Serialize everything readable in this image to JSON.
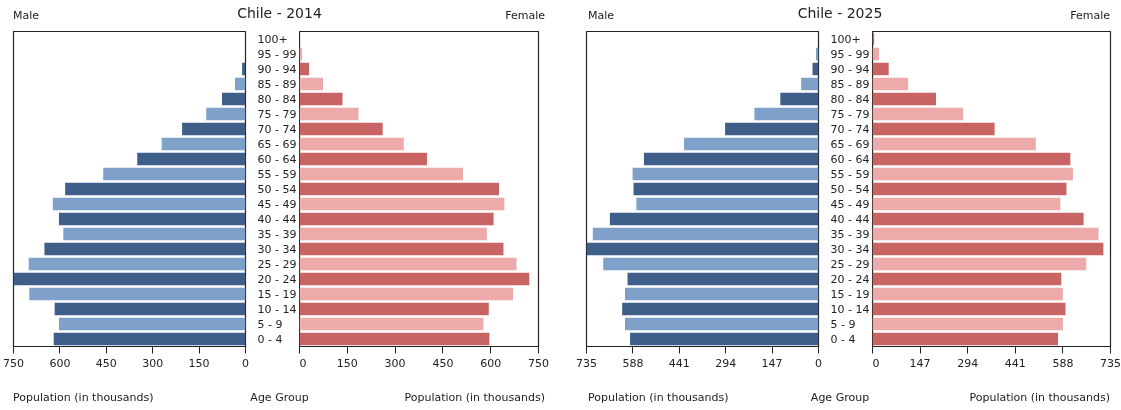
{
  "chart_data": [
    {
      "type": "bar",
      "orientation": "horizontal",
      "title": "Chile - 2014",
      "annotations": [
        "Male"
      ],
      "xlabel": "Population (in thousands)",
      "ylabel": "Age Group",
      "categories": [
        "100+",
        "95 - 99",
        "90 - 94",
        "85 - 89",
        "80 - 84",
        "75 - 79",
        "70 - 74",
        "65 - 69",
        "60 - 64",
        "55 - 59",
        "50 - 54",
        "45 - 49",
        "40 - 44",
        "35 - 39",
        "30 - 34",
        "25 - 29",
        "20 - 24",
        "15 - 19",
        "10 - 14",
        "5 - 9",
        "0 - 4"
      ],
      "values": [
        null,
        null,
        11,
        34,
        76,
        127,
        205,
        271,
        350,
        460,
        583,
        623,
        603,
        589,
        650,
        701,
        750,
        699,
        617,
        603,
        620
      ],
      "colors": [
        "#3f5f8a",
        "#7fa1c9",
        "#3f5f8a",
        "#7fa1c9",
        "#3f5f8a",
        "#7fa1c9",
        "#3f5f8a",
        "#7fa1c9",
        "#3f5f8a",
        "#7fa1c9",
        "#3f5f8a",
        "#7fa1c9",
        "#3f5f8a",
        "#7fa1c9",
        "#3f5f8a",
        "#7fa1c9",
        "#3f5f8a",
        "#7fa1c9",
        "#3f5f8a",
        "#7fa1c9",
        "#3f5f8a"
      ],
      "xlim": [
        750,
        0
      ],
      "xticks": [
        750,
        600,
        450,
        300,
        150,
        0
      ]
    },
    {
      "type": "bar",
      "orientation": "horizontal",
      "annotations": [
        "Female"
      ],
      "xlabel": "Population (in thousands)",
      "tick_labels": "x",
      "values": [
        null,
        8,
        30,
        74,
        135,
        185,
        261,
        327,
        400,
        513,
        626,
        643,
        609,
        588,
        640,
        681,
        721,
        670,
        594,
        577,
        596
      ],
      "colors": [
        "#c96464",
        "#eeaaaa",
        "#c96464",
        "#eeaaaa",
        "#c96464",
        "#eeaaaa",
        "#c96464",
        "#eeaaaa",
        "#c96464",
        "#eeaaaa",
        "#c96464",
        "#eeaaaa",
        "#c96464",
        "#eeaaaa",
        "#c96464",
        "#eeaaaa",
        "#c96464",
        "#eeaaaa",
        "#c96464",
        "#eeaaaa",
        "#c96464"
      ],
      "xlim": [
        0,
        750
      ],
      "xticks": [
        0,
        150,
        300,
        450,
        600,
        750
      ]
    },
    {
      "type": "bar",
      "orientation": "horizontal",
      "title": "Chile - 2025",
      "annotations": [
        "Male"
      ],
      "xlabel": "Population (in thousands)",
      "ylabel": "Age Group",
      "categories": [
        "100+",
        "95 - 99",
        "90 - 94",
        "85 - 89",
        "80 - 84",
        "75 - 79",
        "70 - 74",
        "65 - 69",
        "60 - 64",
        "55 - 59",
        "50 - 54",
        "45 - 49",
        "40 - 44",
        "35 - 39",
        "30 - 34",
        "25 - 29",
        "20 - 24",
        "15 - 19",
        "10 - 14",
        "5 - 9",
        "0 - 4"
      ],
      "values": [
        null,
        8,
        19,
        55,
        121,
        203,
        296,
        426,
        553,
        589,
        586,
        577,
        661,
        715,
        735,
        682,
        605,
        613,
        622,
        613,
        597
      ],
      "colors": [
        "#3f5f8a",
        "#7fa1c9",
        "#3f5f8a",
        "#7fa1c9",
        "#3f5f8a",
        "#7fa1c9",
        "#3f5f8a",
        "#7fa1c9",
        "#3f5f8a",
        "#7fa1c9",
        "#3f5f8a",
        "#7fa1c9",
        "#3f5f8a",
        "#7fa1c9",
        "#3f5f8a",
        "#7fa1c9",
        "#3f5f8a",
        "#7fa1c9",
        "#3f5f8a",
        "#7fa1c9",
        "#3f5f8a"
      ],
      "xlim": [
        735,
        0
      ],
      "xticks": [
        735,
        588,
        441,
        294,
        147,
        0
      ]
    },
    {
      "type": "bar",
      "orientation": "horizontal",
      "annotations": [
        "Female"
      ],
      "xlabel": "Population (in thousands)",
      "tick_labels": "x",
      "values": [
        5,
        20,
        50,
        110,
        196,
        280,
        377,
        504,
        611,
        619,
        599,
        580,
        652,
        698,
        713,
        660,
        583,
        588,
        596,
        588,
        573
      ],
      "colors": [
        "#c96464",
        "#eeaaaa",
        "#c96464",
        "#eeaaaa",
        "#c96464",
        "#eeaaaa",
        "#c96464",
        "#eeaaaa",
        "#c96464",
        "#eeaaaa",
        "#c96464",
        "#eeaaaa",
        "#c96464",
        "#eeaaaa",
        "#c96464",
        "#eeaaaa",
        "#c96464",
        "#eeaaaa",
        "#c96464",
        "#eeaaaa",
        "#c96464"
      ],
      "xlim": [
        0,
        735
      ],
      "xticks": [
        0,
        147,
        294,
        441,
        588,
        735
      ]
    }
  ]
}
